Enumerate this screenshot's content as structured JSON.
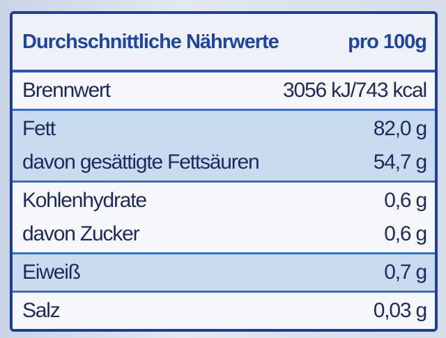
{
  "table": {
    "header": [
      "Durchschnittliche Nährwerte",
      "pro 100g"
    ],
    "groups": [
      {
        "rows": [
          [
            "Brennwert",
            "3056 kJ/743 kcal"
          ]
        ]
      },
      {
        "rows": [
          [
            "Fett",
            "82,0 g"
          ],
          [
            "davon gesättigte Fettsäuren",
            "54,7 g"
          ]
        ]
      },
      {
        "rows": [
          [
            "Kohlenhydrate",
            "0,6 g"
          ],
          [
            "davon Zucker",
            "0,6 g"
          ]
        ]
      },
      {
        "rows": [
          [
            "Eiweiß",
            "0,7 g"
          ]
        ]
      },
      {
        "rows": [
          [
            "Salz",
            "0,03 g"
          ]
        ]
      }
    ]
  }
}
